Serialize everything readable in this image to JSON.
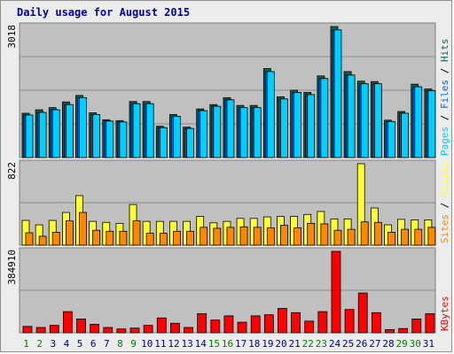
{
  "title": "Daily usage for August 2015",
  "colors": {
    "background": "#ececec",
    "plot": "#c0c0c0",
    "hits": "#106550",
    "files": "#0066ff",
    "pages": "#00d0ff",
    "visits": "#ffff33",
    "sites": "#ff8800",
    "kbytes": "#ff0000",
    "title": "#0000aa",
    "weekend_day": "#008000",
    "weekday": "#000080"
  },
  "chart_data": [
    {
      "type": "bar",
      "title": "Daily usage for August 2015",
      "panel": "top",
      "ymax_label": "3018",
      "ylim": [
        0,
        3018
      ],
      "legend": [
        {
          "name": "Pages",
          "color": "#00d0ff"
        },
        {
          "name": "Files",
          "color": "#0066ff"
        },
        {
          "name": "Hits",
          "color": "#106550"
        }
      ],
      "categories": [
        "1",
        "2",
        "3",
        "4",
        "5",
        "6",
        "7",
        "8",
        "9",
        "10",
        "11",
        "12",
        "13",
        "14",
        "15",
        "16",
        "17",
        "18",
        "19",
        "20",
        "21",
        "22",
        "23",
        "24",
        "25",
        "26",
        "27",
        "28",
        "29",
        "30",
        "31"
      ],
      "series": [
        {
          "name": "Hits",
          "values": [
            1020,
            1100,
            1150,
            1280,
            1430,
            1030,
            870,
            850,
            1290,
            1290,
            720,
            990,
            700,
            1120,
            1220,
            1380,
            1200,
            1200,
            2050,
            1400,
            1550,
            1500,
            1880,
            3018,
            1980,
            1760,
            1750,
            860,
            1060,
            1690,
            1580
          ]
        },
        {
          "name": "Files",
          "values": [
            980,
            1040,
            1100,
            1220,
            1380,
            990,
            840,
            820,
            1240,
            1240,
            690,
            950,
            670,
            1080,
            1180,
            1330,
            1150,
            1150,
            1980,
            1350,
            1500,
            1450,
            1820,
            2940,
            1900,
            1700,
            1700,
            830,
            1020,
            1630,
            1540
          ]
        },
        {
          "name": "Pages",
          "values": [
            980,
            1040,
            1100,
            1220,
            1380,
            990,
            840,
            820,
            1240,
            1240,
            690,
            950,
            670,
            1080,
            1180,
            1330,
            1150,
            1150,
            1980,
            1350,
            1500,
            1450,
            1820,
            2940,
            1900,
            1700,
            1700,
            830,
            1020,
            1630,
            1540
          ]
        }
      ]
    },
    {
      "type": "bar",
      "panel": "middle",
      "ymax_label": "822",
      "ylim": [
        0,
        822
      ],
      "legend": [
        {
          "name": "Sites",
          "color": "#ff8800"
        },
        {
          "name": "Visits",
          "color": "#ffff33"
        }
      ],
      "categories": [
        "1",
        "2",
        "3",
        "4",
        "5",
        "6",
        "7",
        "8",
        "9",
        "10",
        "11",
        "12",
        "13",
        "14",
        "15",
        "16",
        "17",
        "18",
        "19",
        "20",
        "21",
        "22",
        "23",
        "24",
        "25",
        "26",
        "27",
        "28",
        "29",
        "30",
        "31"
      ],
      "series": [
        {
          "name": "Visits",
          "values": [
            250,
            205,
            250,
            330,
            500,
            240,
            230,
            220,
            410,
            240,
            240,
            240,
            240,
            290,
            225,
            240,
            270,
            270,
            285,
            290,
            290,
            310,
            340,
            265,
            265,
            822,
            375,
            205,
            260,
            255,
            255
          ]
        },
        {
          "name": "Sites",
          "values": [
            125,
            90,
            130,
            245,
            330,
            150,
            140,
            140,
            245,
            120,
            120,
            140,
            140,
            180,
            170,
            180,
            185,
            180,
            175,
            200,
            175,
            220,
            215,
            150,
            160,
            235,
            230,
            130,
            160,
            160,
            180
          ]
        }
      ]
    },
    {
      "type": "bar",
      "panel": "bottom",
      "ymax_label": "384910",
      "ylim": [
        0,
        384910
      ],
      "legend": [
        {
          "name": "KBytes",
          "color": "#ff0000"
        }
      ],
      "categories": [
        "1",
        "2",
        "3",
        "4",
        "5",
        "6",
        "7",
        "8",
        "9",
        "10",
        "11",
        "12",
        "13",
        "14",
        "15",
        "16",
        "17",
        "18",
        "19",
        "20",
        "21",
        "22",
        "23",
        "24",
        "25",
        "26",
        "27",
        "28",
        "29",
        "30",
        "31"
      ],
      "series": [
        {
          "name": "KBytes",
          "values": [
            30000,
            25000,
            35000,
            100000,
            65000,
            40000,
            25000,
            18000,
            22000,
            35000,
            70000,
            45000,
            25000,
            90000,
            60000,
            80000,
            50000,
            80000,
            85000,
            115000,
            95000,
            55000,
            100000,
            384910,
            110000,
            188000,
            95000,
            15000,
            20000,
            65000,
            90000
          ]
        }
      ],
      "weekend_days": [
        "1",
        "2",
        "8",
        "9",
        "15",
        "16",
        "22",
        "23",
        "29",
        "30"
      ]
    }
  ]
}
